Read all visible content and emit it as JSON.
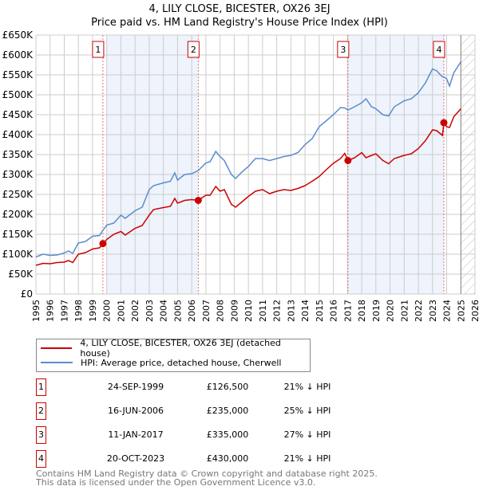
{
  "chart_data": {
    "type": "line",
    "title": "4, LILY CLOSE, BICESTER, OX26 3EJ",
    "subtitle": "Price paid vs. HM Land Registry's House Price Index (HPI)",
    "xlim": [
      1995,
      2026
    ],
    "ylim": [
      0,
      650000
    ],
    "y_ticks": [
      0,
      50000,
      100000,
      150000,
      200000,
      250000,
      300000,
      350000,
      400000,
      450000,
      500000,
      550000,
      600000,
      650000
    ],
    "y_tick_labels": [
      "£0",
      "£50K",
      "£100K",
      "£150K",
      "£200K",
      "£250K",
      "£300K",
      "£350K",
      "£400K",
      "£450K",
      "£500K",
      "£550K",
      "£600K",
      "£650K"
    ],
    "x_tick_labels": [
      "1995",
      "1996",
      "1997",
      "1998",
      "1999",
      "2000",
      "2001",
      "2002",
      "2003",
      "2004",
      "2005",
      "2006",
      "2007",
      "2008",
      "2009",
      "2010",
      "2011",
      "2012",
      "2013",
      "2014",
      "2015",
      "2016",
      "2017",
      "2018",
      "2019",
      "2020",
      "2021",
      "2022",
      "2023",
      "2024",
      "2025",
      "2026"
    ],
    "grid": true,
    "data_end": 2025.0,
    "series": [
      {
        "name": "4, LILY CLOSE, BICESTER, OX26 3EJ (detached house)",
        "color": "#cc0000",
        "x": [
          1995,
          1995.5,
          1996,
          1996.5,
          1997,
          1997.3,
          1997.6,
          1998,
          1998.5,
          1999,
          1999.5,
          1999.73,
          2000,
          2000.5,
          2001,
          2001.3,
          2002,
          2002.5,
          2003,
          2003.3,
          2004,
          2004.5,
          2004.8,
          2005,
          2005.5,
          2006,
          2006.46,
          2007,
          2007.3,
          2007.7,
          2008,
          2008.3,
          2008.8,
          2009.1,
          2009.5,
          2010,
          2010.5,
          2011,
          2011.5,
          2012,
          2012.5,
          2013,
          2013.5,
          2014,
          2014.5,
          2015,
          2015.5,
          2016,
          2016.5,
          2016.8,
          2017.03,
          2017.5,
          2018,
          2018.3,
          2018.7,
          2019,
          2019.5,
          2019.9,
          2020.3,
          2021,
          2021.5,
          2022,
          2022.5,
          2023,
          2023.3,
          2023.7,
          2023.8,
          2024.0,
          2024.2,
          2024.5,
          2025
        ],
        "y": [
          72000,
          77000,
          76000,
          79000,
          80000,
          84000,
          79000,
          100000,
          104000,
          113000,
          116000,
          126500,
          137000,
          150000,
          157000,
          148000,
          165000,
          172000,
          198000,
          212000,
          217000,
          220000,
          240000,
          228000,
          235000,
          237000,
          235000,
          248000,
          248000,
          270000,
          258000,
          262000,
          225000,
          218000,
          230000,
          245000,
          258000,
          262000,
          252000,
          258000,
          262000,
          260000,
          265000,
          272000,
          283000,
          295000,
          312000,
          328000,
          340000,
          353000,
          335000,
          342000,
          355000,
          342000,
          348000,
          352000,
          335000,
          327000,
          340000,
          348000,
          352000,
          365000,
          385000,
          412000,
          410000,
          398000,
          430000,
          420000,
          418000,
          445000,
          465000
        ]
      },
      {
        "name": "HPI: Average price, detached house, Cherwell",
        "color": "#5b8ccc",
        "x": [
          1995,
          1995.5,
          1996,
          1996.5,
          1997,
          1997.3,
          1997.6,
          1998,
          1998.5,
          1999,
          1999.5,
          1999.73,
          2000,
          2000.5,
          2001,
          2001.3,
          2002,
          2002.5,
          2003,
          2003.3,
          2004,
          2004.5,
          2004.8,
          2005,
          2005.5,
          2006,
          2006.46,
          2007,
          2007.3,
          2007.7,
          2008,
          2008.3,
          2008.8,
          2009.1,
          2009.5,
          2010,
          2010.5,
          2011,
          2011.5,
          2012,
          2012.5,
          2013,
          2013.5,
          2014,
          2014.5,
          2015,
          2015.5,
          2016,
          2016.5,
          2016.8,
          2017.03,
          2017.5,
          2018,
          2018.3,
          2018.7,
          2019,
          2019.5,
          2019.9,
          2020.3,
          2021,
          2021.5,
          2022,
          2022.5,
          2023,
          2023.3,
          2023.7,
          2023.8,
          2024.0,
          2024.2,
          2024.5,
          2025
        ],
        "y": [
          93000,
          100000,
          97000,
          98000,
          103000,
          108000,
          102000,
          128000,
          132000,
          145000,
          147000,
          160000,
          173000,
          178000,
          198000,
          190000,
          209000,
          218000,
          262000,
          272000,
          279000,
          283000,
          304000,
          286000,
          300000,
          302000,
          310000,
          329000,
          332000,
          358000,
          345000,
          335000,
          300000,
          290000,
          305000,
          320000,
          340000,
          340000,
          335000,
          340000,
          345000,
          348000,
          355000,
          375000,
          390000,
          420000,
          435000,
          450000,
          468000,
          467000,
          462000,
          470000,
          480000,
          490000,
          470000,
          465000,
          450000,
          447000,
          470000,
          485000,
          490000,
          505000,
          530000,
          565000,
          560000,
          545000,
          545000,
          540000,
          522000,
          555000,
          583000
        ]
      }
    ],
    "sales": [
      {
        "label": "1",
        "x": 1999.73,
        "price": 126500,
        "date": "24-SEP-1999",
        "price_label": "£126,500",
        "vs_hpi": "21% ↓ HPI"
      },
      {
        "label": "2",
        "x": 2006.46,
        "price": 235000,
        "date": "16-JUN-2006",
        "price_label": "£235,000",
        "vs_hpi": "25% ↓ HPI"
      },
      {
        "label": "3",
        "x": 2017.03,
        "price": 335000,
        "date": "11-JAN-2017",
        "price_label": "£335,000",
        "vs_hpi": "27% ↓ HPI"
      },
      {
        "label": "4",
        "x": 2023.8,
        "price": 430000,
        "date": "20-OCT-2023",
        "price_label": "£430,000",
        "vs_hpi": "21% ↓ HPI"
      }
    ],
    "shaded_ranges": [
      [
        2000,
        2006.46
      ],
      [
        2017.03,
        2023.8
      ]
    ],
    "legend_placement": "below"
  },
  "footer": {
    "line1": "Contains HM Land Registry data © Crown copyright and database right 2025.",
    "line2": "This data is licensed under the Open Government Licence v3.0."
  }
}
